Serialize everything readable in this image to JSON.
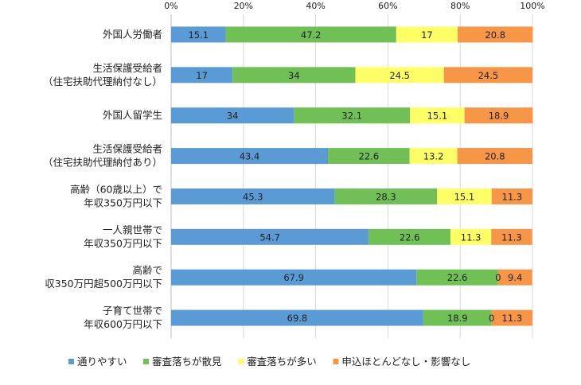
{
  "chart_data": {
    "type": "bar",
    "orientation": "horizontal",
    "stacked": "percent",
    "title": "",
    "xlabel": "",
    "ylabel": "",
    "xlim": [
      0,
      100
    ],
    "x_ticks": [
      "0%",
      "20%",
      "40%",
      "60%",
      "80%",
      "100%"
    ],
    "grid": true,
    "legend_position": "bottom",
    "categories": [
      [
        "外国人労働者"
      ],
      [
        "生活保護受給者",
        "（住宅扶助代理納付なし）"
      ],
      [
        "外国人留学生"
      ],
      [
        "生活保護受給者",
        "（住宅扶助代理納付あり）"
      ],
      [
        "高齢（60歳以上）で",
        "年収350万円以下"
      ],
      [
        "一人親世帯で",
        "年収350万円以下"
      ],
      [
        "高齢で",
        "収350万円超500万円以下"
      ],
      [
        "子育て世帯で",
        "年収600万円以下"
      ]
    ],
    "series": [
      {
        "name": "通りやすい",
        "color": "#5B9BD5",
        "values": [
          15.1,
          17,
          34,
          43.4,
          45.3,
          54.7,
          67.9,
          69.8
        ]
      },
      {
        "name": "審査落ちが散見",
        "color": "#70C056",
        "values": [
          47.2,
          34,
          32.1,
          22.6,
          28.3,
          22.6,
          22.6,
          18.9
        ]
      },
      {
        "name": "審査落ちが多い",
        "color": "#FFFF66",
        "values": [
          17,
          24.5,
          15.1,
          13.2,
          15.1,
          11.3,
          0,
          0
        ]
      },
      {
        "name": "申込ほとんどなし・影響なし",
        "color": "#F79646",
        "values": [
          20.8,
          24.5,
          18.9,
          20.8,
          11.3,
          11.3,
          9.4,
          11.3
        ]
      }
    ]
  }
}
